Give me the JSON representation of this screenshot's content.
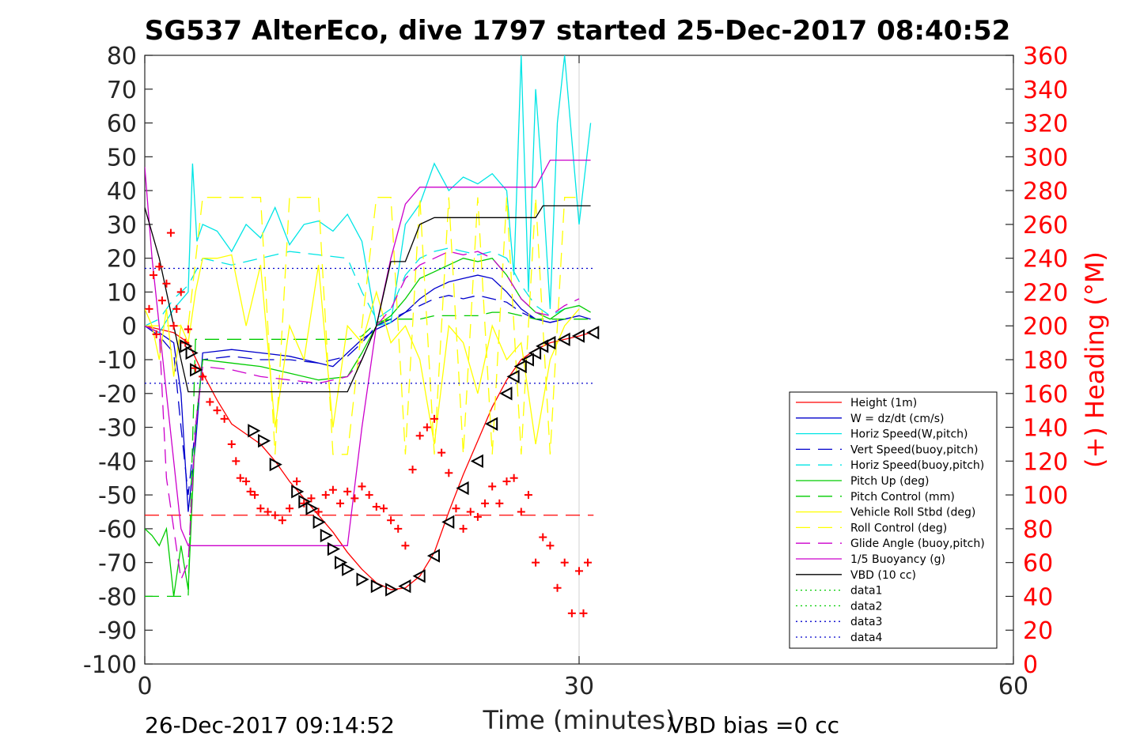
{
  "chart_data": {
    "type": "line",
    "title": "SG537 AlterEco, dive 1797 started 25-Dec-2017 08:40:52",
    "xlabel": "Time (minutes)",
    "ylabel": "",
    "y2label": "(+) Heading (°M)",
    "xlim": [
      0,
      60
    ],
    "ylim": [
      -100,
      80
    ],
    "y2lim": [
      0,
      360
    ],
    "xticks": [
      "0",
      "30",
      "60"
    ],
    "yticks": [
      "80",
      "70",
      "60",
      "50",
      "40",
      "30",
      "20",
      "10",
      "0",
      "-10",
      "-20",
      "-30",
      "-40",
      "-50",
      "-60",
      "-70",
      "-80",
      "-90",
      "-100"
    ],
    "y2ticks": [
      "360",
      "340",
      "320",
      "300",
      "280",
      "260",
      "240",
      "220",
      "200",
      "180",
      "160",
      "140",
      "120",
      "100",
      "80",
      "60",
      "40",
      "20",
      "0"
    ],
    "grid": "x-only at 30",
    "legend_position": "bottom-right",
    "footer_left": "26-Dec-2017 09:14:52",
    "footer_right": "VBD bias =0 cc",
    "series": [
      {
        "name": "Height (1m)",
        "color": "#ff0000",
        "style": "solid",
        "x": [
          0,
          1,
          2,
          3,
          4,
          5,
          6,
          7,
          8,
          9,
          10,
          11,
          12,
          13,
          14,
          15,
          16,
          17,
          18,
          19,
          20,
          21,
          22,
          23,
          24,
          25,
          26,
          27,
          28,
          29,
          30,
          30.8
        ],
        "y": [
          0,
          -1,
          -2,
          -5,
          -14,
          -22,
          -29,
          -32,
          -35,
          -40,
          -46,
          -51,
          -56,
          -61,
          -67,
          -72,
          -76,
          -78,
          -77.5,
          -74,
          -67,
          -55,
          -44,
          -34,
          -24,
          -16,
          -10,
          -7,
          -5,
          -4,
          -3,
          -2
        ]
      },
      {
        "name": "W = dz/dt (cm/s)",
        "color": "#0000cc",
        "style": "solid",
        "x": [
          0,
          1,
          2,
          2.5,
          3,
          3.5,
          4,
          6,
          8,
          10,
          12,
          13,
          14,
          15,
          16,
          17,
          18,
          19,
          20,
          21,
          22,
          23,
          24,
          25,
          26,
          27,
          28,
          29,
          30,
          30.8
        ],
        "y": [
          0,
          -2,
          -5,
          -20,
          -55,
          -35,
          -8,
          -7,
          -8,
          -9,
          -11,
          -12,
          -8,
          -4,
          -1,
          1,
          4,
          8,
          11,
          13,
          14,
          15,
          14,
          10,
          5,
          2,
          1,
          2,
          3,
          2
        ]
      },
      {
        "name": "Horiz Speed(W,pitch)",
        "color": "#00e5e5",
        "style": "solid",
        "x": [
          0,
          1,
          2,
          3,
          3.3,
          3.6,
          4,
          5,
          6,
          7,
          8,
          9,
          10,
          11,
          12,
          13,
          14,
          15,
          16,
          17,
          18,
          19,
          20,
          21,
          22,
          23,
          24,
          25,
          25.5,
          26,
          26.5,
          27,
          27.5,
          28,
          28.5,
          29,
          30,
          30.8
        ],
        "y": [
          0,
          -2,
          5,
          10,
          48,
          25,
          30,
          28,
          22,
          30,
          26,
          35,
          24,
          30,
          31,
          28,
          33,
          25,
          0,
          1,
          30,
          36,
          48,
          40,
          44,
          42,
          45,
          40,
          15,
          80,
          10,
          70,
          40,
          5,
          60,
          80,
          30,
          60
        ]
      },
      {
        "name": "Vert Speed(buoy,pitch)",
        "color": "#0000cc",
        "style": "dashed",
        "x": [
          0,
          1,
          2,
          2.5,
          3,
          3.5,
          4,
          6,
          8,
          10,
          12,
          14,
          15,
          16,
          17,
          18,
          19,
          20,
          21,
          22,
          23,
          24,
          25,
          26,
          27,
          28,
          29,
          30
        ],
        "y": [
          0,
          -3,
          -8,
          -30,
          -50,
          -30,
          -10,
          -9,
          -10,
          -10,
          -11,
          -9,
          -5,
          0,
          2,
          4,
          6,
          8,
          9,
          8,
          9,
          8,
          7,
          4,
          2,
          1,
          2,
          3
        ]
      },
      {
        "name": "Horiz Speed(buoy,pitch)",
        "color": "#00e5e5",
        "style": "dashed",
        "x": [
          0,
          1,
          2,
          3,
          4,
          6,
          8,
          10,
          12,
          14,
          15,
          16,
          17,
          18,
          19,
          20,
          21,
          22,
          23,
          24,
          25,
          26,
          27,
          28,
          29,
          30
        ],
        "y": [
          0,
          2,
          8,
          12,
          20,
          18,
          20,
          22,
          21,
          20,
          10,
          2,
          5,
          15,
          20,
          22,
          23,
          22,
          21,
          22,
          20,
          12,
          6,
          3,
          5,
          6
        ]
      },
      {
        "name": "Pitch Up (deg)",
        "color": "#00cc00",
        "style": "solid",
        "x": [
          0,
          0.5,
          1,
          1.5,
          2,
          2.5,
          3,
          3.5,
          4,
          6,
          8,
          10,
          12,
          14,
          15,
          16,
          17,
          18,
          19,
          20,
          21,
          22,
          23,
          24,
          25,
          26,
          27,
          28,
          29,
          30,
          30.8
        ],
        "y": [
          -60,
          -62,
          -65,
          -60,
          -80,
          -65,
          -78,
          -30,
          -10,
          -11,
          -12,
          -14,
          -16,
          -15,
          -8,
          0,
          3,
          8,
          14,
          16,
          18,
          20,
          19,
          20,
          15,
          8,
          4,
          2,
          5,
          6,
          4
        ]
      },
      {
        "name": "Pitch Control (mm)",
        "color": "#00cc00",
        "style": "dashed",
        "x": [
          0,
          1,
          2,
          2.5,
          3,
          3.5,
          4,
          6,
          8,
          10,
          12,
          14,
          15,
          16,
          17,
          18,
          19,
          20,
          21,
          22,
          23,
          24,
          25,
          26,
          27,
          28,
          29,
          30,
          30.8
        ],
        "y": [
          -80,
          -80,
          -80,
          -80,
          -80,
          -4,
          -4,
          -4,
          -4,
          -4,
          -4,
          -4,
          -3,
          1,
          2,
          2,
          2,
          3,
          3,
          3,
          3,
          4,
          4,
          3,
          2,
          2,
          2,
          2,
          2
        ]
      },
      {
        "name": "Vehicle Roll Stbd (deg)",
        "color": "#ffff00",
        "style": "solid",
        "x": [
          0,
          0.5,
          1,
          1.5,
          2,
          2.5,
          3,
          3.5,
          4,
          5,
          6,
          7,
          8,
          9,
          10,
          11,
          12,
          13,
          14,
          15,
          16,
          17,
          18,
          19,
          20,
          21,
          22,
          23,
          24,
          25,
          26,
          27,
          28,
          29,
          30
        ],
        "y": [
          5,
          0,
          -10,
          5,
          -15,
          0,
          -5,
          10,
          20,
          20,
          21,
          0,
          18,
          -30,
          0,
          -10,
          18,
          -30,
          0,
          -5,
          10,
          -5,
          0,
          -10,
          -35,
          0,
          -5,
          -20,
          0,
          -10,
          -5,
          -35,
          -10,
          0,
          5
        ]
      },
      {
        "name": "Roll Control (deg)",
        "color": "#ffff00",
        "style": "dashed",
        "x": [
          0,
          1,
          2,
          3,
          4,
          6,
          8,
          9,
          10,
          11,
          12,
          13,
          14,
          15,
          16,
          17,
          18,
          19,
          20,
          21,
          22,
          23,
          24,
          25,
          26,
          27,
          28,
          29,
          30
        ],
        "y": [
          0,
          0,
          0,
          0,
          38,
          38,
          38,
          -38,
          38,
          38,
          38,
          -38,
          -38,
          0,
          38,
          38,
          -38,
          38,
          -38,
          38,
          -38,
          38,
          -38,
          38,
          -38,
          38,
          -38,
          38,
          38
        ]
      },
      {
        "name": "Glide Angle (buoy,pitch)",
        "color": "#cc00cc",
        "style": "dashed",
        "x": [
          0,
          1,
          1.5,
          2,
          2.5,
          3,
          3.5,
          4,
          6,
          8,
          10,
          12,
          14,
          15,
          16,
          17,
          18,
          19,
          20,
          21,
          22,
          23,
          24,
          25,
          26,
          27,
          28,
          29,
          30
        ],
        "y": [
          0,
          -2,
          -45,
          -60,
          -75,
          -70,
          -30,
          -12,
          -13,
          -15,
          -16,
          -17,
          -15,
          -10,
          0,
          5,
          14,
          18,
          20,
          22,
          21,
          22,
          20,
          15,
          8,
          4,
          3,
          6,
          8
        ]
      },
      {
        "name": "1/5 Buoyancy (g)",
        "color": "#cc00cc",
        "style": "solid",
        "x": [
          0,
          0.5,
          1,
          1.5,
          2,
          2.5,
          3,
          5,
          8,
          10,
          12,
          14,
          15,
          16,
          17,
          18,
          19,
          20,
          22,
          24,
          26,
          27,
          28,
          29,
          30,
          30.8
        ],
        "y": [
          47,
          20,
          0,
          -20,
          -40,
          -60,
          -65,
          -65,
          -65,
          -65,
          -65,
          -65,
          -30,
          0,
          20,
          36,
          41,
          41,
          41,
          41,
          41,
          41,
          49,
          49,
          49,
          49
        ]
      },
      {
        "name": "VBD (10 cc)",
        "color": "#000000",
        "style": "solid",
        "x": [
          0,
          1,
          2,
          2.5,
          3,
          4,
          6,
          8,
          10,
          12,
          14,
          15,
          16,
          17,
          18,
          19,
          20,
          22,
          24,
          26,
          27,
          27.5,
          28,
          30,
          30.8
        ],
        "y": [
          35,
          20,
          0,
          -10,
          -19.5,
          -19.5,
          -19.5,
          -19.5,
          -19.5,
          -19.5,
          -19.5,
          -10,
          0,
          19,
          19,
          30,
          32,
          32,
          32,
          32,
          32,
          35.5,
          35.5,
          35.5,
          35.5
        ]
      },
      {
        "name": "data1",
        "color": "#00cc00",
        "style": "dotted",
        "x": [],
        "y": []
      },
      {
        "name": "data2",
        "color": "#00cc00",
        "style": "dotted",
        "x": [],
        "y": []
      },
      {
        "name": "data3",
        "color": "#0000cc",
        "style": "dotted",
        "x": [
          0,
          31
        ],
        "y": [
          17,
          17
        ]
      },
      {
        "name": "data4",
        "color": "#0000cc",
        "style": "dotted",
        "x": [
          0,
          31
        ],
        "y": [
          -17,
          -17
        ]
      }
    ],
    "reference_lines": [
      {
        "color": "#ff0000",
        "style": "dashed",
        "y": -56,
        "x": [
          0,
          31
        ]
      }
    ],
    "heading_points": {
      "color": "#ff0000",
      "marker": "+",
      "axis": "right",
      "x": [
        0.3,
        0.6,
        0.8,
        1.0,
        1.2,
        1.5,
        1.8,
        2.0,
        2.2,
        2.5,
        2.8,
        3.0,
        3.5,
        4,
        4.5,
        5,
        5.5,
        6,
        6.3,
        6.6,
        7,
        7.3,
        7.6,
        8,
        8.5,
        9,
        9.5,
        10,
        10.5,
        11,
        11.5,
        12,
        12.5,
        13,
        13.5,
        14,
        14.5,
        15,
        15.5,
        16,
        16.5,
        17,
        17.5,
        18,
        18.5,
        19,
        19.5,
        20,
        20.5,
        21,
        21.5,
        22,
        22.5,
        23,
        23.5,
        24,
        24.5,
        25,
        25.5,
        26,
        26.5,
        27,
        27.5,
        28,
        28.5,
        29,
        29.5,
        30,
        30.3,
        30.6
      ],
      "y": [
        210,
        230,
        195,
        235,
        215,
        225,
        255,
        200,
        210,
        220,
        190,
        198,
        175,
        170,
        155,
        150,
        145,
        130,
        120,
        110,
        108,
        102,
        100,
        92,
        90,
        88,
        85,
        92,
        108,
        95,
        98,
        90,
        100,
        103,
        95,
        102,
        98,
        105,
        100,
        93,
        92,
        85,
        80,
        70,
        115,
        135,
        140,
        145,
        125,
        113,
        92,
        80,
        90,
        87,
        95,
        105,
        95,
        108,
        110,
        90,
        100,
        60,
        75,
        70,
        45,
        60,
        30,
        55,
        30,
        60
      ]
    },
    "triangle_markers": {
      "color": "#000000",
      "x": [
        2.8,
        3.2,
        3.5,
        7.5,
        8.2,
        9,
        10.5,
        11,
        11.5,
        12,
        12.5,
        13,
        13.5,
        14,
        15,
        16,
        17,
        18,
        19,
        20,
        21,
        22,
        23,
        24,
        25,
        25.5,
        26,
        26.5,
        27,
        27.5,
        28,
        29,
        30,
        31
      ],
      "y": [
        -6,
        -8,
        -13,
        -31,
        -34,
        -41,
        -49,
        -52,
        -54,
        -58,
        -62,
        -66,
        -70,
        -72,
        -75,
        -77,
        -78,
        -77,
        -74,
        -68,
        -58,
        -48,
        -40,
        -29,
        -20,
        -15,
        -12,
        -10,
        -8,
        -6,
        -5,
        -4,
        -3,
        -2
      ]
    }
  }
}
